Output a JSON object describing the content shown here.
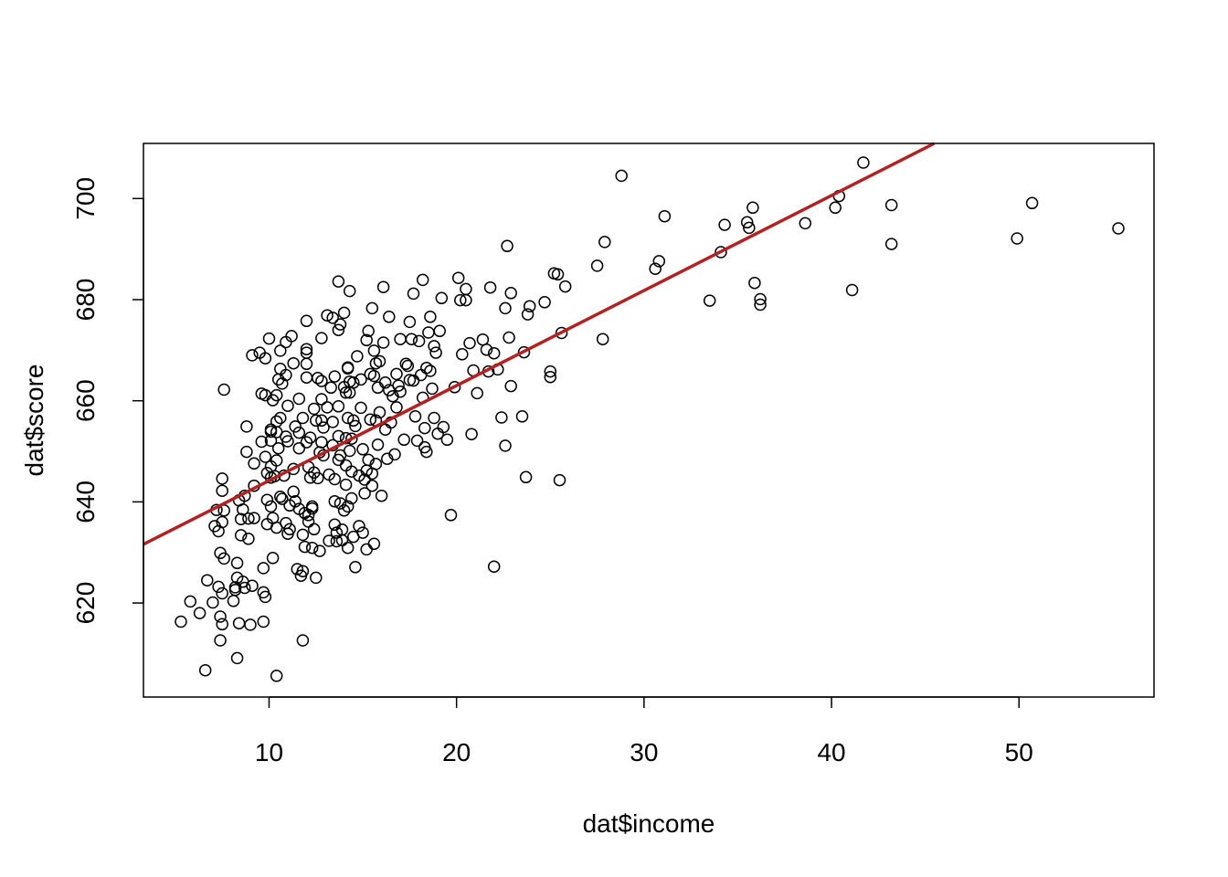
{
  "chart_data": {
    "type": "scatter",
    "title": "",
    "xlabel": "dat$income",
    "ylabel": "dat$score",
    "xlim": [
      3.3,
      57.2
    ],
    "ylim": [
      601.4,
      710.9
    ],
    "x_ticks": [
      10,
      20,
      30,
      40,
      50
    ],
    "y_ticks": [
      620,
      640,
      660,
      680,
      700
    ],
    "x_tick_labels": [
      "10",
      "20",
      "30",
      "40",
      "50"
    ],
    "y_tick_labels": [
      "620",
      "640",
      "660",
      "680",
      "700"
    ],
    "grid": false,
    "legend": "none",
    "point_color": "#000000",
    "line_color": "#B22222",
    "regression_line": {
      "intercept": 625.4,
      "slope": 1.88
    },
    "points": [
      [
        5.3,
        616.3
      ],
      [
        5.8,
        620.3
      ],
      [
        6.3,
        618.0
      ],
      [
        6.6,
        606.7
      ],
      [
        6.7,
        624.5
      ],
      [
        7.0,
        620.1
      ],
      [
        7.1,
        635.2
      ],
      [
        7.2,
        638.4
      ],
      [
        7.3,
        634.2
      ],
      [
        7.3,
        623.2
      ],
      [
        7.4,
        629.9
      ],
      [
        7.4,
        617.3
      ],
      [
        7.4,
        612.6
      ],
      [
        7.5,
        644.6
      ],
      [
        7.5,
        642.2
      ],
      [
        7.5,
        636.0
      ],
      [
        7.5,
        621.9
      ],
      [
        7.5,
        615.8
      ],
      [
        7.6,
        638.3
      ],
      [
        7.6,
        628.8
      ],
      [
        7.6,
        662.2
      ],
      [
        8.1,
        620.4
      ],
      [
        8.2,
        622.6
      ],
      [
        8.2,
        623.1
      ],
      [
        8.3,
        609.1
      ],
      [
        8.3,
        627.9
      ],
      [
        8.3,
        625.0
      ],
      [
        8.4,
        640.3
      ],
      [
        8.4,
        616.0
      ],
      [
        8.5,
        633.4
      ],
      [
        8.5,
        636.6
      ],
      [
        8.6,
        624.2
      ],
      [
        8.6,
        638.5
      ],
      [
        8.7,
        623.0
      ],
      [
        8.7,
        641.2
      ],
      [
        8.8,
        654.9
      ],
      [
        8.8,
        649.9
      ],
      [
        8.9,
        632.7
      ],
      [
        8.9,
        636.7
      ],
      [
        9.0,
        615.7
      ],
      [
        9.1,
        623.4
      ],
      [
        9.1,
        669.0
      ],
      [
        9.2,
        647.6
      ],
      [
        9.2,
        636.8
      ],
      [
        9.2,
        643.2
      ],
      [
        9.5,
        669.5
      ],
      [
        9.6,
        661.4
      ],
      [
        9.6,
        651.9
      ],
      [
        9.7,
        626.9
      ],
      [
        9.7,
        622.1
      ],
      [
        9.7,
        616.3
      ],
      [
        9.8,
        668.4
      ],
      [
        9.8,
        661.1
      ],
      [
        9.8,
        648.9
      ],
      [
        9.8,
        621.2
      ],
      [
        9.9,
        635.6
      ],
      [
        9.9,
        645.7
      ],
      [
        9.9,
        640.4
      ],
      [
        10.0,
        672.3
      ],
      [
        10.1,
        654.3
      ],
      [
        10.1,
        653.9
      ],
      [
        10.1,
        652.1
      ],
      [
        10.1,
        647.0
      ],
      [
        10.1,
        644.8
      ],
      [
        10.1,
        639.1
      ],
      [
        10.2,
        628.9
      ],
      [
        10.2,
        636.8
      ],
      [
        10.2,
        660.1
      ],
      [
        10.3,
        645.1
      ],
      [
        10.4,
        661.1
      ],
      [
        10.4,
        655.9
      ],
      [
        10.4,
        653.8
      ],
      [
        10.4,
        648.2
      ],
      [
        10.4,
        634.9
      ],
      [
        10.4,
        605.6
      ],
      [
        10.5,
        664.2
      ],
      [
        10.5,
        650.6
      ],
      [
        10.6,
        669.9
      ],
      [
        10.6,
        666.3
      ],
      [
        10.6,
        656.6
      ],
      [
        10.6,
        641.0
      ],
      [
        10.7,
        663.4
      ],
      [
        10.7,
        640.6
      ],
      [
        10.8,
        645.2
      ],
      [
        10.9,
        671.6
      ],
      [
        10.9,
        665.1
      ],
      [
        10.9,
        652.9
      ],
      [
        10.9,
        635.8
      ],
      [
        11.0,
        652.0
      ],
      [
        11.0,
        659.0
      ],
      [
        11.0,
        633.7
      ],
      [
        11.1,
        634.6
      ],
      [
        11.1,
        639.3
      ],
      [
        11.2,
        672.8
      ],
      [
        11.3,
        667.4
      ],
      [
        11.3,
        646.5
      ],
      [
        11.3,
        642.0
      ],
      [
        11.4,
        654.9
      ],
      [
        11.4,
        640.1
      ],
      [
        11.5,
        626.7
      ],
      [
        11.6,
        650.6
      ],
      [
        11.6,
        660.4
      ],
      [
        11.6,
        653.7
      ],
      [
        11.6,
        638.6
      ],
      [
        11.7,
        625.4
      ],
      [
        11.8,
        612.6
      ],
      [
        11.8,
        656.6
      ],
      [
        11.8,
        633.5
      ],
      [
        11.8,
        626.3
      ],
      [
        11.9,
        637.8
      ],
      [
        11.9,
        631.1
      ],
      [
        12.0,
        675.8
      ],
      [
        12.0,
        670.2
      ],
      [
        12.0,
        669.5
      ],
      [
        12.0,
        667.3
      ],
      [
        12.0,
        664.6
      ],
      [
        12.0,
        651.8
      ],
      [
        12.1,
        646.9
      ],
      [
        12.1,
        637.4
      ],
      [
        12.1,
        636.1
      ],
      [
        12.2,
        644.8
      ],
      [
        12.2,
        652.7
      ],
      [
        12.3,
        639.1
      ],
      [
        12.3,
        638.7
      ],
      [
        12.3,
        630.9
      ],
      [
        12.4,
        658.4
      ],
      [
        12.4,
        645.8
      ],
      [
        12.4,
        634.6
      ],
      [
        12.5,
        656.1
      ],
      [
        12.5,
        625.0
      ],
      [
        12.6,
        664.5
      ],
      [
        12.6,
        644.7
      ],
      [
        12.7,
        649.8
      ],
      [
        12.7,
        630.3
      ],
      [
        12.8,
        672.4
      ],
      [
        12.8,
        663.9
      ],
      [
        12.8,
        660.3
      ],
      [
        12.8,
        656.1
      ],
      [
        12.8,
        651.8
      ],
      [
        12.9,
        654.7
      ],
      [
        12.9,
        649.2
      ],
      [
        13.1,
        676.9
      ],
      [
        13.1,
        658.7
      ],
      [
        13.2,
        645.4
      ],
      [
        13.2,
        632.3
      ],
      [
        13.3,
        662.6
      ],
      [
        13.4,
        676.4
      ],
      [
        13.4,
        655.8
      ],
      [
        13.4,
        651.2
      ],
      [
        13.5,
        664.8
      ],
      [
        13.5,
        644.5
      ],
      [
        13.5,
        640.1
      ],
      [
        13.5,
        635.5
      ],
      [
        13.6,
        633.9
      ],
      [
        13.6,
        632.2
      ],
      [
        13.7,
        683.6
      ],
      [
        13.7,
        674.0
      ],
      [
        13.7,
        658.9
      ],
      [
        13.7,
        653.0
      ],
      [
        13.7,
        648.3
      ],
      [
        13.8,
        675.1
      ],
      [
        13.8,
        649.2
      ],
      [
        13.8,
        639.7
      ],
      [
        13.9,
        634.5
      ],
      [
        13.9,
        632.4
      ],
      [
        14.0,
        662.7
      ],
      [
        14.0,
        677.4
      ],
      [
        14.0,
        638.3
      ],
      [
        14.1,
        661.6
      ],
      [
        14.1,
        652.6
      ],
      [
        14.1,
        647.2
      ],
      [
        14.1,
        643.4
      ],
      [
        14.2,
        666.4
      ],
      [
        14.2,
        666.6
      ],
      [
        14.2,
        656.6
      ],
      [
        14.2,
        639.1
      ],
      [
        14.2,
        630.9
      ],
      [
        14.3,
        681.7
      ],
      [
        14.3,
        663.8
      ],
      [
        14.3,
        661.6
      ],
      [
        14.3,
        650.1
      ],
      [
        14.4,
        652.5
      ],
      [
        14.4,
        646.0
      ],
      [
        14.4,
        640.7
      ],
      [
        14.5,
        656.1
      ],
      [
        14.5,
        663.6
      ],
      [
        14.5,
        633.1
      ],
      [
        14.6,
        655.0
      ],
      [
        14.6,
        627.1
      ],
      [
        14.7,
        668.8
      ],
      [
        14.8,
        645.2
      ],
      [
        14.8,
        635.2
      ],
      [
        14.9,
        664.2
      ],
      [
        14.9,
        658.6
      ],
      [
        15.0,
        650.4
      ],
      [
        15.0,
        633.9
      ],
      [
        15.1,
        644.4
      ],
      [
        15.1,
        641.7
      ],
      [
        15.2,
        672.0
      ],
      [
        15.2,
        646.2
      ],
      [
        15.2,
        630.6
      ],
      [
        15.3,
        673.8
      ],
      [
        15.3,
        648.3
      ],
      [
        15.4,
        665.3
      ],
      [
        15.4,
        656.3
      ],
      [
        15.5,
        678.3
      ],
      [
        15.5,
        645.6
      ],
      [
        15.5,
        643.2
      ],
      [
        15.6,
        669.9
      ],
      [
        15.6,
        664.9
      ],
      [
        15.6,
        631.7
      ],
      [
        15.7,
        667.4
      ],
      [
        15.7,
        656.1
      ],
      [
        15.7,
        647.5
      ],
      [
        15.8,
        662.6
      ],
      [
        15.8,
        651.3
      ],
      [
        15.9,
        667.8
      ],
      [
        15.9,
        657.7
      ],
      [
        16.0,
        641.2
      ],
      [
        16.1,
        682.5
      ],
      [
        16.1,
        671.5
      ],
      [
        16.2,
        663.6
      ],
      [
        16.2,
        654.3
      ],
      [
        16.3,
        648.5
      ],
      [
        16.4,
        676.6
      ],
      [
        16.4,
        662.1
      ],
      [
        16.5,
        655.7
      ],
      [
        16.6,
        660.9
      ],
      [
        16.7,
        649.4
      ],
      [
        16.8,
        665.3
      ],
      [
        16.8,
        658.7
      ],
      [
        16.9,
        663.0
      ],
      [
        17.0,
        672.2
      ],
      [
        17.0,
        661.8
      ],
      [
        17.2,
        652.3
      ],
      [
        17.3,
        667.3
      ],
      [
        17.4,
        666.9
      ],
      [
        17.5,
        675.6
      ],
      [
        17.5,
        664.1
      ],
      [
        17.6,
        672.2
      ],
      [
        17.7,
        681.2
      ],
      [
        17.7,
        664.0
      ],
      [
        17.8,
        656.9
      ],
      [
        17.9,
        652.1
      ],
      [
        18.0,
        671.8
      ],
      [
        18.1,
        665.1
      ],
      [
        18.2,
        683.9
      ],
      [
        18.2,
        660.6
      ],
      [
        18.3,
        654.6
      ],
      [
        18.3,
        650.8
      ],
      [
        18.4,
        666.5
      ],
      [
        18.4,
        649.9
      ],
      [
        18.5,
        673.5
      ],
      [
        18.6,
        665.9
      ],
      [
        18.6,
        676.6
      ],
      [
        18.7,
        662.4
      ],
      [
        18.8,
        670.8
      ],
      [
        18.8,
        656.6
      ],
      [
        18.9,
        669.5
      ],
      [
        19.0,
        653.5
      ],
      [
        19.1,
        673.8
      ],
      [
        19.2,
        680.3
      ],
      [
        19.3,
        654.8
      ],
      [
        19.5,
        652.3
      ],
      [
        19.7,
        637.4
      ],
      [
        19.9,
        662.7
      ],
      [
        20.1,
        684.3
      ],
      [
        20.2,
        679.9
      ],
      [
        20.3,
        669.2
      ],
      [
        20.5,
        682.1
      ],
      [
        20.5,
        679.9
      ],
      [
        20.7,
        671.4
      ],
      [
        20.8,
        653.4
      ],
      [
        20.9,
        666.0
      ],
      [
        21.1,
        661.5
      ],
      [
        21.4,
        672.1
      ],
      [
        21.6,
        670.1
      ],
      [
        21.7,
        665.8
      ],
      [
        21.8,
        682.4
      ],
      [
        22.0,
        627.2
      ],
      [
        22.0,
        669.4
      ],
      [
        22.2,
        666.2
      ],
      [
        22.4,
        656.7
      ],
      [
        22.6,
        678.3
      ],
      [
        22.6,
        651.1
      ],
      [
        22.7,
        690.6
      ],
      [
        22.8,
        672.5
      ],
      [
        22.9,
        662.9
      ],
      [
        22.9,
        681.3
      ],
      [
        23.5,
        656.9
      ],
      [
        23.6,
        669.6
      ],
      [
        23.7,
        644.9
      ],
      [
        23.8,
        677.1
      ],
      [
        23.9,
        678.7
      ],
      [
        24.7,
        679.5
      ],
      [
        25.0,
        665.8
      ],
      [
        25.0,
        664.7
      ],
      [
        25.2,
        685.2
      ],
      [
        25.4,
        685.0
      ],
      [
        25.5,
        644.3
      ],
      [
        25.6,
        673.4
      ],
      [
        25.8,
        682.6
      ],
      [
        27.5,
        686.7
      ],
      [
        27.8,
        672.2
      ],
      [
        27.9,
        691.4
      ],
      [
        28.8,
        704.5
      ],
      [
        30.6,
        686.1
      ],
      [
        30.8,
        687.6
      ],
      [
        31.1,
        696.5
      ],
      [
        33.5,
        679.8
      ],
      [
        34.1,
        689.4
      ],
      [
        34.3,
        694.8
      ],
      [
        35.5,
        695.3
      ],
      [
        35.6,
        694.2
      ],
      [
        35.8,
        698.2
      ],
      [
        35.9,
        683.3
      ],
      [
        36.2,
        680.1
      ],
      [
        36.2,
        679.0
      ],
      [
        38.6,
        695.1
      ],
      [
        40.2,
        698.2
      ],
      [
        40.4,
        700.5
      ],
      [
        41.1,
        681.9
      ],
      [
        41.7,
        707.1
      ],
      [
        43.2,
        698.7
      ],
      [
        43.2,
        691.0
      ],
      [
        49.9,
        692.1
      ],
      [
        50.7,
        699.1
      ],
      [
        55.3,
        694.1
      ]
    ]
  }
}
